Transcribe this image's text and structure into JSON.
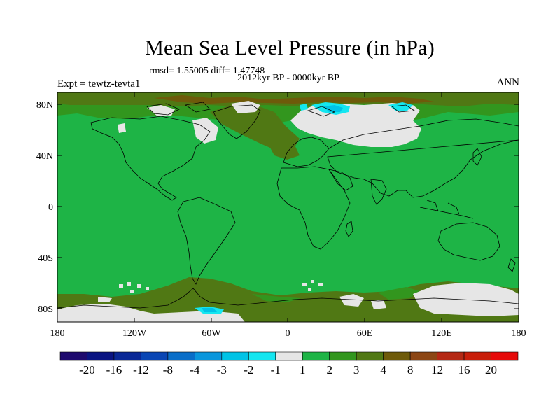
{
  "title": "Mean Sea Level Pressure (in hPa)",
  "stats": "rmsd= 1.55005 diff= 1.47748",
  "period": "2012kyr BP - 0000kyr BP",
  "experiment": "Expt = tewtz-tevta1",
  "season": "ANN",
  "axes": {
    "lat_ticks": [
      "80N",
      "40N",
      "0",
      "40S",
      "80S"
    ],
    "lon_ticks": [
      "180",
      "120W",
      "60W",
      "0",
      "60E",
      "120E",
      "180"
    ]
  },
  "colorbar": {
    "labels": [
      "-20",
      "-16",
      "-12",
      "-8",
      "-4",
      "-3",
      "-2",
      "-1",
      "1",
      "2",
      "3",
      "4",
      "8",
      "12",
      "16",
      "20"
    ],
    "colors": [
      "#1e0a6e",
      "#0a1482",
      "#0a2896",
      "#0a46b4",
      "#0a6ec8",
      "#0a96dc",
      "#00c3e6",
      "#14e6f0",
      "#e6e6e6",
      "#1eb446",
      "#32961e",
      "#507814",
      "#6e5a0a",
      "#8c4614",
      "#b42814",
      "#c81e0a",
      "#e60a0a"
    ]
  },
  "map_colors": {
    "background": "#1eb446",
    "dark_green": "#32961e",
    "olive": "#507814",
    "brown": "#6e5a0a",
    "white": "#e6e6e6",
    "light_blue": "#14e6f0",
    "cyan": "#00c3e6",
    "blue": "#0a96dc"
  }
}
